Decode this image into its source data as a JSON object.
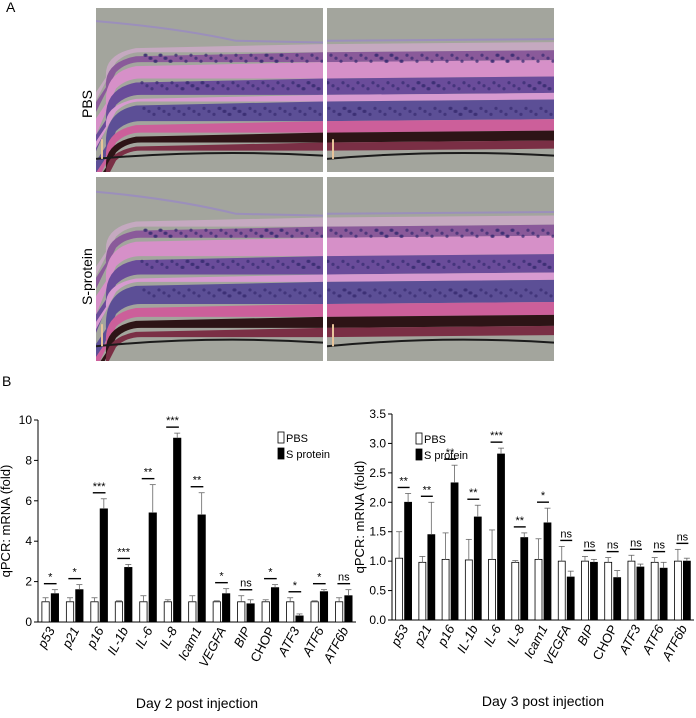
{
  "panels": {
    "a": "A",
    "b": "B"
  },
  "histology": {
    "row_labels": [
      "PBS",
      "S-protein"
    ],
    "colors": {
      "background": "#a3a59d",
      "nerve_fiber": "#c5a9c0",
      "ganglion": "#8a5a9a",
      "inner_plexiform": "#d690c8",
      "inner_nuclear": "#6a4c9a",
      "outer_plexiform": "#d79ad0",
      "outer_nuclear": "#5c4f96",
      "photoreceptor": "#cc5f9a",
      "rpe": "#2d1416",
      "choroid": "#7a2f45",
      "vitreous_edge": "#9b8fbb"
    }
  },
  "chart_data": [
    {
      "type": "bar",
      "xlabel": "Day 2 post injection",
      "ylabel": "qPCR: mRNA (fold)",
      "ylim": [
        0,
        10
      ],
      "yticks": [
        "0",
        "2",
        "4",
        "6",
        "8",
        "10"
      ],
      "categories": [
        "p53",
        "p21",
        "p16",
        "IL-1b",
        "IL-6",
        "IL-8",
        "Icam1",
        "VEGFA",
        "BIP",
        "CHOP",
        "ATF3",
        "ATF6",
        "ATF6b"
      ],
      "italic_categories": [
        "p53",
        "p21",
        "p16",
        "IL-1b",
        "IL-6",
        "IL-8",
        "Icam1",
        "VEGFA",
        "BIP",
        "ATF3",
        "ATF6",
        "ATF6b"
      ],
      "series": [
        {
          "name": "PBS",
          "color": "#ffffff",
          "values": [
            1.0,
            1.0,
            1.0,
            1.0,
            1.0,
            1.0,
            1.0,
            1.0,
            1.0,
            1.0,
            1.0,
            1.0,
            1.0
          ],
          "errors": [
            0.2,
            0.2,
            0.2,
            0.05,
            0.3,
            0.1,
            0.3,
            0.05,
            0.3,
            0.1,
            0.2,
            0.05,
            0.2
          ]
        },
        {
          "name": "S protein",
          "color": "#000000",
          "values": [
            1.4,
            1.6,
            5.6,
            2.7,
            5.4,
            9.1,
            5.3,
            1.4,
            0.9,
            1.7,
            0.3,
            1.5,
            1.3
          ],
          "errors": [
            0.2,
            0.25,
            0.5,
            0.15,
            1.4,
            0.25,
            1.1,
            0.25,
            0.2,
            0.15,
            0.1,
            0.1,
            0.3
          ]
        }
      ],
      "significance": [
        "*",
        "*",
        "***",
        "***",
        "**",
        "***",
        "**",
        "*",
        "ns",
        "*",
        "*",
        "*",
        "ns"
      ],
      "legend": "top-right"
    },
    {
      "type": "bar",
      "xlabel": "Day 3 post injection",
      "ylabel": "qPCR: mRNA (fold)",
      "ylim": [
        0,
        3.5
      ],
      "yticks": [
        "0.0",
        "0.5",
        "1.0",
        "1.5",
        "2.0",
        "2.5",
        "3.0",
        "3.5"
      ],
      "categories": [
        "p53",
        "p21",
        "p16",
        "IL-1b",
        "IL-6",
        "IL-8",
        "Icam1",
        "VEGFA",
        "BIP",
        "CHOP",
        "ATF3",
        "ATF6",
        "ATF6b"
      ],
      "italic_categories": [
        "p53",
        "p21",
        "p16",
        "IL-1b",
        "IL-6",
        "IL-8",
        "Icam1",
        "VEGFA",
        "BIP",
        "ATF3",
        "ATF6",
        "ATF6b"
      ],
      "series": [
        {
          "name": "PBS",
          "color": "#ffffff",
          "values": [
            1.05,
            0.98,
            1.03,
            1.02,
            1.03,
            0.98,
            1.03,
            1.0,
            1.0,
            0.98,
            1.0,
            0.98,
            1.0
          ],
          "errors": [
            0.45,
            0.1,
            0.45,
            0.35,
            0.5,
            0.03,
            0.35,
            0.25,
            0.08,
            0.08,
            0.1,
            0.08,
            0.2
          ]
        },
        {
          "name": "S protein",
          "color": "#000000",
          "values": [
            2.0,
            1.45,
            2.33,
            1.75,
            2.82,
            1.4,
            1.65,
            0.73,
            0.98,
            0.72,
            0.9,
            0.88,
            1.0
          ],
          "errors": [
            0.15,
            0.55,
            0.3,
            0.2,
            0.1,
            0.08,
            0.25,
            0.1,
            0.05,
            0.12,
            0.05,
            0.1,
            0.05
          ]
        }
      ],
      "significance": [
        "**",
        "**",
        "**",
        "**",
        "***",
        "**",
        "*",
        "ns",
        "ns",
        "ns",
        "ns",
        "ns",
        "ns"
      ],
      "legend": "top-right"
    }
  ]
}
